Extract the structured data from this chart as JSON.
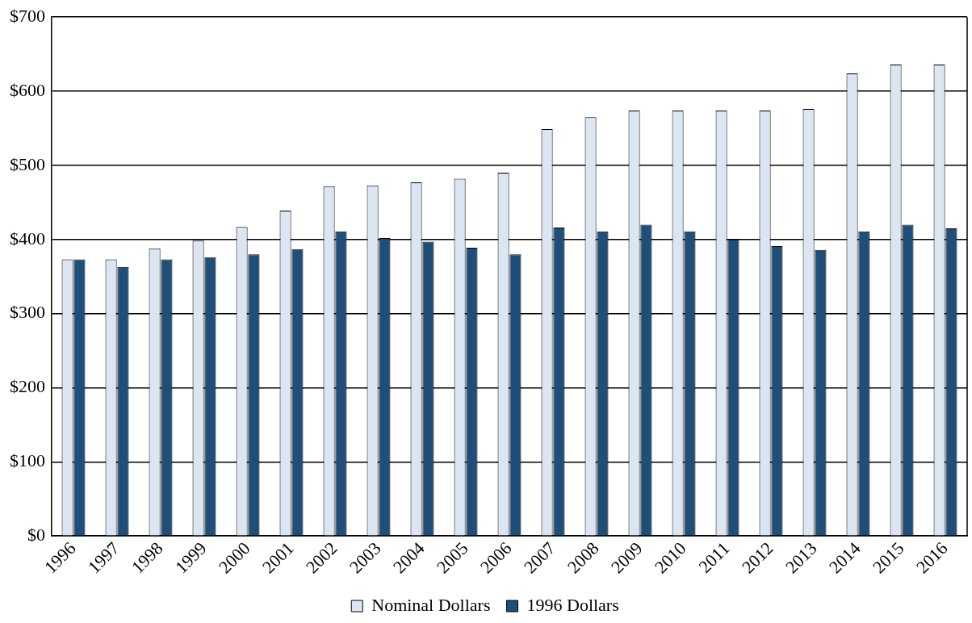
{
  "chart_data": {
    "type": "bar",
    "categories": [
      "1996",
      "1997",
      "1998",
      "1999",
      "2000",
      "2001",
      "2002",
      "2003",
      "2004",
      "2005",
      "2006",
      "2007",
      "2008",
      "2009",
      "2010",
      "2011",
      "2012",
      "2013",
      "2014",
      "2015",
      "2016"
    ],
    "series": [
      {
        "name": "Nominal Dollars",
        "color": "#dce6f2",
        "values": [
          373,
          373,
          388,
          399,
          417,
          439,
          472,
          473,
          477,
          482,
          490,
          549,
          565,
          574,
          574,
          574,
          574,
          576,
          624,
          636,
          636
        ]
      },
      {
        "name": "1996 Dollars",
        "color": "#1f4e79",
        "values": [
          373,
          363,
          373,
          376,
          380,
          387,
          411,
          402,
          397,
          389,
          380,
          416,
          411,
          420,
          411,
          400,
          391,
          386,
          411,
          420,
          415
        ]
      }
    ],
    "ylim": [
      0,
      700
    ],
    "yticks": [
      {
        "value": 0,
        "label": "$0"
      },
      {
        "value": 100,
        "label": "$100"
      },
      {
        "value": 200,
        "label": "$200"
      },
      {
        "value": 300,
        "label": "$300"
      },
      {
        "value": 400,
        "label": "$400"
      },
      {
        "value": 500,
        "label": "$500"
      },
      {
        "value": 600,
        "label": "$600"
      },
      {
        "value": 700,
        "label": "$700"
      }
    ],
    "grid": "y",
    "legend": "bottom"
  }
}
